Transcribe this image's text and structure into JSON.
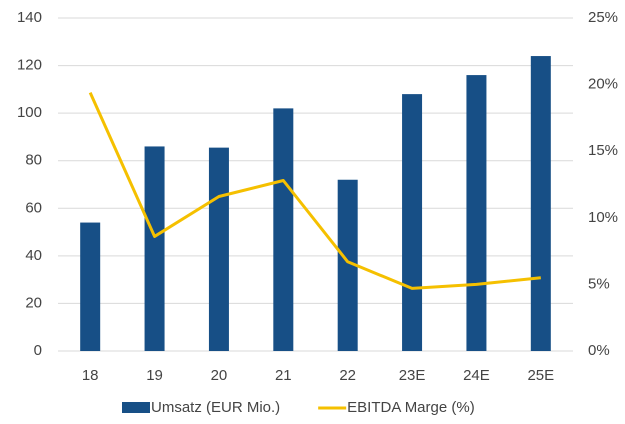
{
  "chart_data": {
    "type": "bar",
    "categories": [
      "18",
      "19",
      "20",
      "21",
      "22",
      "23E",
      "24E",
      "25E"
    ],
    "series": [
      {
        "name": "Umsatz (EUR Mio.)",
        "type": "bar",
        "color": "#174f86",
        "values": [
          54,
          86,
          85.5,
          102,
          72,
          108,
          116,
          124
        ]
      },
      {
        "name": "EBITDA Marge (%)",
        "type": "line",
        "axis": "y2",
        "color": "#f5c000",
        "values": [
          19.4,
          8.6,
          11.6,
          12.8,
          6.7,
          4.7,
          5.0,
          5.5
        ]
      }
    ],
    "ylim": [
      0,
      140
    ],
    "yticks": [
      0,
      20,
      40,
      60,
      80,
      100,
      120,
      140
    ],
    "y2lim": [
      0,
      25
    ],
    "y2ticks": [
      {
        "value": 0,
        "label": "0%"
      },
      {
        "value": 5,
        "label": "5%"
      },
      {
        "value": 10,
        "label": "10%"
      },
      {
        "value": 15,
        "label": "15%"
      },
      {
        "value": 20,
        "label": "20%"
      },
      {
        "value": 25,
        "label": "25%"
      }
    ],
    "grid": true,
    "legend": "bottom"
  }
}
